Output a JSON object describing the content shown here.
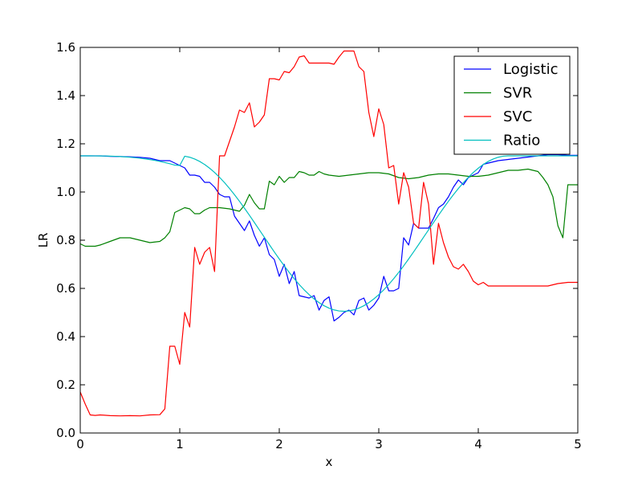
{
  "chart_data": {
    "type": "line",
    "title": "",
    "xlabel": "x",
    "ylabel": "LR",
    "xlim": [
      0,
      5
    ],
    "ylim": [
      0.0,
      1.6
    ],
    "xticks": [
      "0",
      "1",
      "2",
      "3",
      "4",
      "5"
    ],
    "xtick_values": [
      0,
      1,
      2,
      3,
      4,
      5
    ],
    "yticks": [
      "0.0",
      "0.2",
      "0.4",
      "0.6",
      "0.8",
      "1.0",
      "1.2",
      "1.4",
      "1.6"
    ],
    "ytick_values": [
      0.0,
      0.2,
      0.4,
      0.6,
      0.8,
      1.0,
      1.2,
      1.4,
      1.6
    ],
    "grid": false,
    "legend_position": "top-right",
    "series": [
      {
        "name": "Logistic",
        "color": "#0000ff",
        "x": [
          0,
          0.1,
          0.2,
          0.3,
          0.4,
          0.5,
          0.6,
          0.7,
          0.8,
          0.9,
          1.0,
          1.05,
          1.1,
          1.15,
          1.2,
          1.25,
          1.3,
          1.35,
          1.4,
          1.45,
          1.5,
          1.55,
          1.6,
          1.65,
          1.7,
          1.75,
          1.8,
          1.85,
          1.9,
          1.95,
          2.0,
          2.05,
          2.1,
          2.15,
          2.2,
          2.25,
          2.3,
          2.35,
          2.4,
          2.45,
          2.5,
          2.55,
          2.6,
          2.65,
          2.7,
          2.75,
          2.8,
          2.85,
          2.9,
          2.95,
          3.0,
          3.05,
          3.1,
          3.15,
          3.2,
          3.25,
          3.3,
          3.35,
          3.4,
          3.45,
          3.5,
          3.55,
          3.6,
          3.65,
          3.7,
          3.75,
          3.8,
          3.85,
          3.9,
          3.95,
          4.0,
          4.05,
          4.1,
          4.2,
          4.3,
          4.4,
          4.5,
          4.6,
          4.7,
          4.8,
          4.9,
          5.0
        ],
        "y": [
          1.15,
          1.15,
          1.15,
          1.148,
          1.147,
          1.146,
          1.144,
          1.14,
          1.13,
          1.13,
          1.11,
          1.1,
          1.07,
          1.07,
          1.065,
          1.04,
          1.04,
          1.02,
          0.99,
          0.98,
          0.98,
          0.9,
          0.87,
          0.84,
          0.88,
          0.82,
          0.775,
          0.81,
          0.74,
          0.72,
          0.65,
          0.7,
          0.62,
          0.67,
          0.57,
          0.565,
          0.56,
          0.57,
          0.51,
          0.55,
          0.565,
          0.465,
          0.48,
          0.5,
          0.51,
          0.49,
          0.55,
          0.56,
          0.51,
          0.53,
          0.56,
          0.65,
          0.59,
          0.59,
          0.6,
          0.81,
          0.78,
          0.87,
          0.85,
          0.85,
          0.85,
          0.89,
          0.935,
          0.95,
          0.98,
          1.02,
          1.05,
          1.03,
          1.06,
          1.07,
          1.08,
          1.115,
          1.12,
          1.13,
          1.135,
          1.14,
          1.145,
          1.15,
          1.155,
          1.155,
          1.152,
          1.152
        ]
      },
      {
        "name": "SVR",
        "color": "#008000",
        "x": [
          0,
          0.05,
          0.1,
          0.15,
          0.2,
          0.3,
          0.4,
          0.5,
          0.6,
          0.7,
          0.8,
          0.85,
          0.9,
          0.95,
          1.0,
          1.05,
          1.1,
          1.15,
          1.2,
          1.25,
          1.3,
          1.35,
          1.4,
          1.5,
          1.6,
          1.65,
          1.7,
          1.75,
          1.8,
          1.85,
          1.9,
          1.95,
          2.0,
          2.05,
          2.1,
          2.15,
          2.2,
          2.25,
          2.3,
          2.35,
          2.4,
          2.45,
          2.5,
          2.6,
          2.7,
          2.8,
          2.9,
          3.0,
          3.1,
          3.2,
          3.3,
          3.4,
          3.5,
          3.6,
          3.7,
          3.8,
          3.9,
          4.0,
          4.1,
          4.2,
          4.3,
          4.4,
          4.5,
          4.6,
          4.65,
          4.7,
          4.75,
          4.8,
          4.85,
          4.9,
          4.95,
          5.0
        ],
        "y": [
          0.785,
          0.775,
          0.775,
          0.775,
          0.78,
          0.795,
          0.81,
          0.81,
          0.8,
          0.79,
          0.795,
          0.81,
          0.835,
          0.915,
          0.925,
          0.935,
          0.93,
          0.91,
          0.91,
          0.925,
          0.935,
          0.935,
          0.935,
          0.93,
          0.92,
          0.945,
          0.99,
          0.955,
          0.93,
          0.93,
          1.045,
          1.03,
          1.065,
          1.04,
          1.06,
          1.06,
          1.085,
          1.08,
          1.07,
          1.07,
          1.085,
          1.075,
          1.07,
          1.065,
          1.07,
          1.075,
          1.08,
          1.08,
          1.075,
          1.06,
          1.055,
          1.06,
          1.07,
          1.075,
          1.075,
          1.07,
          1.065,
          1.065,
          1.07,
          1.08,
          1.09,
          1.09,
          1.095,
          1.085,
          1.06,
          1.03,
          0.98,
          0.86,
          0.81,
          1.03,
          1.03,
          1.03
        ]
      },
      {
        "name": "SVC",
        "color": "#ff0000",
        "x": [
          0,
          0.05,
          0.1,
          0.15,
          0.2,
          0.3,
          0.4,
          0.5,
          0.6,
          0.7,
          0.8,
          0.85,
          0.9,
          0.95,
          1.0,
          1.05,
          1.1,
          1.15,
          1.2,
          1.25,
          1.3,
          1.35,
          1.4,
          1.45,
          1.5,
          1.55,
          1.6,
          1.65,
          1.7,
          1.75,
          1.8,
          1.85,
          1.9,
          1.95,
          2.0,
          2.05,
          2.1,
          2.15,
          2.2,
          2.25,
          2.3,
          2.35,
          2.4,
          2.45,
          2.5,
          2.55,
          2.6,
          2.65,
          2.7,
          2.75,
          2.8,
          2.85,
          2.9,
          2.95,
          3.0,
          3.05,
          3.1,
          3.15,
          3.2,
          3.25,
          3.3,
          3.35,
          3.4,
          3.45,
          3.5,
          3.55,
          3.6,
          3.65,
          3.7,
          3.75,
          3.8,
          3.85,
          3.9,
          3.95,
          4.0,
          4.05,
          4.1,
          4.2,
          4.3,
          4.4,
          4.5,
          4.6,
          4.7,
          4.8,
          4.9,
          5.0
        ],
        "y": [
          0.17,
          0.12,
          0.075,
          0.073,
          0.075,
          0.072,
          0.071,
          0.072,
          0.071,
          0.075,
          0.076,
          0.1,
          0.36,
          0.36,
          0.285,
          0.5,
          0.44,
          0.77,
          0.7,
          0.75,
          0.77,
          0.67,
          1.15,
          1.15,
          1.21,
          1.27,
          1.34,
          1.33,
          1.37,
          1.27,
          1.29,
          1.32,
          1.47,
          1.47,
          1.465,
          1.5,
          1.495,
          1.52,
          1.56,
          1.565,
          1.535,
          1.535,
          1.535,
          1.535,
          1.535,
          1.53,
          1.56,
          1.585,
          1.585,
          1.585,
          1.52,
          1.5,
          1.33,
          1.23,
          1.345,
          1.28,
          1.1,
          1.11,
          0.95,
          1.08,
          1.02,
          0.87,
          0.85,
          1.04,
          0.95,
          0.7,
          0.87,
          0.79,
          0.73,
          0.69,
          0.68,
          0.7,
          0.67,
          0.63,
          0.615,
          0.625,
          0.61,
          0.61,
          0.61,
          0.61,
          0.61,
          0.61,
          0.61,
          0.62,
          0.625,
          0.625
        ]
      },
      {
        "name": "Ratio",
        "color": "#00bfbf",
        "formula": "cosine",
        "x": [],
        "y": []
      }
    ]
  }
}
